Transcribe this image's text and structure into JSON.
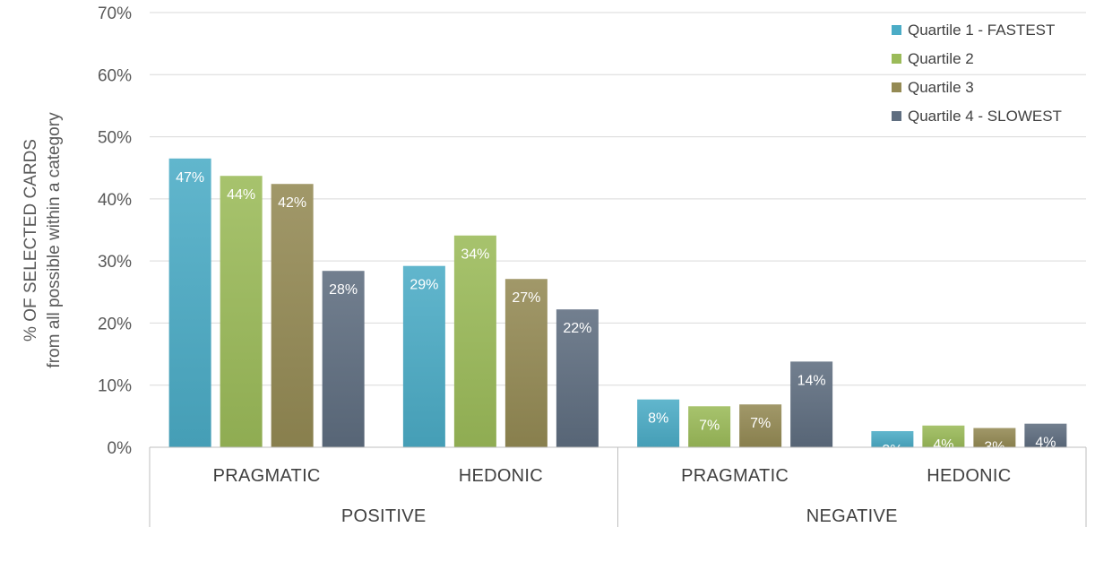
{
  "chart_data": {
    "type": "bar",
    "ylabel_line1": "% OF SELECTED CARDS",
    "ylabel_line2": "from all possible within a category",
    "ylim": [
      0,
      70
    ],
    "yticks": [
      "0%",
      "10%",
      "20%",
      "30%",
      "40%",
      "50%",
      "60%",
      "70%"
    ],
    "yticks_values": [
      0,
      10,
      20,
      30,
      40,
      50,
      60,
      70
    ],
    "grid": true,
    "legend_position": "top-right",
    "groups": [
      "POSITIVE",
      "NEGATIVE"
    ],
    "categories": [
      "PRAGMATIC",
      "HEDONIC",
      "PRAGMATIC",
      "HEDONIC"
    ],
    "series": [
      {
        "name": "Quartile 1  - FASTEST",
        "color": "#4bacc6",
        "values": [
          46.5,
          29.2,
          7.7,
          2.6
        ],
        "labels": [
          "47%",
          "29%",
          "8%",
          "3%"
        ]
      },
      {
        "name": "Quartile 2",
        "color": "#9bbb59",
        "values": [
          43.7,
          34.1,
          6.6,
          3.5
        ],
        "labels": [
          "44%",
          "34%",
          "7%",
          "4%"
        ]
      },
      {
        "name": "Quartile 3",
        "color": "#948a54",
        "values": [
          42.4,
          27.1,
          6.9,
          3.1
        ],
        "labels": [
          "42%",
          "27%",
          "7%",
          "3%"
        ]
      },
      {
        "name": "Quartile 4 - SLOWEST",
        "color": "#5f6e80",
        "values": [
          28.4,
          22.2,
          13.8,
          3.8
        ],
        "labels": [
          "28%",
          "22%",
          "14%",
          "4%"
        ]
      }
    ]
  }
}
